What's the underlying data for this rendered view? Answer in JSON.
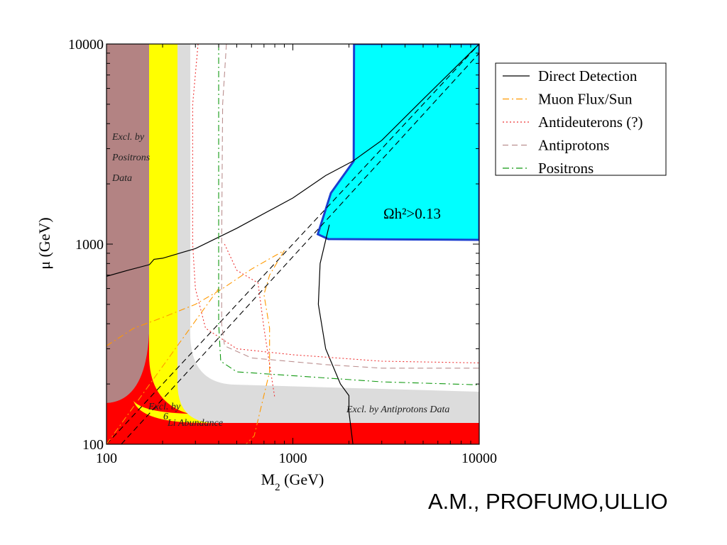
{
  "chart_data": {
    "type": "line",
    "xlabel": "M",
    "xlabel_sub": "2",
    "xlabel_unit": " (GeV)",
    "ylabel": "μ  (GeV)",
    "xscale": "log",
    "yscale": "log",
    "xlim": [
      100,
      10000
    ],
    "ylim": [
      100,
      10000
    ],
    "x_ticks": [
      {
        "value": 100,
        "label": "100"
      },
      {
        "value": 1000,
        "label": "1000"
      },
      {
        "value": 10000,
        "label": "10000"
      }
    ],
    "y_ticks": [
      {
        "value": 100,
        "label": "100"
      },
      {
        "value": 1000,
        "label": "1000"
      },
      {
        "value": 10000,
        "label": "10000"
      }
    ],
    "legend_position": "right",
    "series": [
      {
        "name": "Direct Detection",
        "color": "#000000",
        "dash": "solid",
        "segments": [
          [
            [
              100,
              690
            ],
            [
              130,
              740
            ],
            [
              170,
              790
            ],
            [
              180,
              840
            ],
            [
              200,
              850
            ],
            [
              300,
              950
            ],
            [
              500,
              1200
            ],
            [
              1000,
              1700
            ],
            [
              1500,
              2200
            ],
            [
              2100,
              2600
            ],
            [
              3000,
              3300
            ],
            [
              5000,
              5300
            ],
            [
              10000,
              10000
            ]
          ],
          [
            [
              1570,
              1250
            ],
            [
              1400,
              800
            ],
            [
              1370,
              500
            ],
            [
              1500,
              300
            ],
            [
              1800,
              200
            ],
            [
              2000,
              175
            ],
            [
              2000,
              145
            ],
            [
              2100,
              100
            ]
          ]
        ]
      },
      {
        "name": "Muon Flux/Sun",
        "color": "#ff9900",
        "dash": "dashdot",
        "segments": [
          [
            [
              100,
              310
            ],
            [
              140,
              380
            ],
            [
              200,
              430
            ],
            [
              300,
              500
            ],
            [
              420,
              600
            ],
            [
              600,
              750
            ],
            [
              900,
              930
            ]
          ],
          [
            [
              900,
              930
            ],
            [
              750,
              700
            ],
            [
              700,
              560
            ],
            [
              750,
              380
            ],
            [
              750,
              230
            ],
            [
              620,
              110
            ],
            [
              560,
              100
            ]
          ],
          [
            [
              100,
              100
            ],
            [
              400,
              600
            ]
          ]
        ]
      },
      {
        "name": "Antideuterons (?)",
        "color": "#ee3333",
        "dash": "dot",
        "segments": [
          [
            [
              310,
              10000
            ],
            [
              290,
              5000
            ],
            [
              290,
              1000
            ],
            [
              300,
              600
            ],
            [
              340,
              380
            ],
            [
              500,
              300
            ],
            [
              1000,
              280
            ],
            [
              3000,
              260
            ],
            [
              10000,
              255
            ]
          ],
          [
            [
              430,
              1000
            ],
            [
              500,
              740
            ],
            [
              650,
              640
            ],
            [
              700,
              380
            ],
            [
              800,
              170
            ]
          ]
        ]
      },
      {
        "name": "Antiprotons",
        "color": "#bb8f8f",
        "dash": "dash",
        "segments": [
          [
            [
              440,
              10000
            ],
            [
              420,
              5000
            ],
            [
              415,
              1000
            ],
            [
              415,
              400
            ],
            [
              430,
              310
            ],
            [
              600,
              270
            ],
            [
              1500,
              250
            ],
            [
              3000,
              240
            ],
            [
              10000,
              240
            ]
          ]
        ]
      },
      {
        "name": "Positrons",
        "color": "#119911",
        "dash": "dashdot",
        "segments": [
          [
            [
              400,
              10000
            ],
            [
              400,
              5000
            ],
            [
              400,
              1000
            ],
            [
              400,
              400
            ],
            [
              410,
              260
            ],
            [
              500,
              230
            ],
            [
              1000,
              220
            ],
            [
              3000,
              205
            ],
            [
              10000,
              198
            ]
          ]
        ]
      }
    ],
    "diagonals": [
      {
        "color": "#000000",
        "dash": "dash",
        "points": [
          [
            100,
            100
          ],
          [
            10000,
            10000
          ]
        ]
      },
      {
        "color": "#000000",
        "dash": "dash",
        "points": [
          [
            120,
            100
          ],
          [
            10000,
            9000
          ]
        ]
      }
    ],
    "regions": [
      {
        "label": "Ωh²>0.13",
        "color": "#00ffff",
        "border": "#1a3ed0",
        "boundary": [
          [
            2130,
            10000
          ],
          [
            2120,
            2600
          ],
          [
            1600,
            1800
          ],
          [
            1360,
            1120
          ],
          [
            1550,
            1060
          ],
          [
            10000,
            1050
          ],
          [
            10000,
            10000
          ]
        ]
      },
      {
        "label": "Excl. by Positrons Data",
        "color": "#b38383"
      },
      {
        "label": "Excl. by 6Li Abundance",
        "color": "#ffff00"
      },
      {
        "label": "Excl. by Antiprotons Data",
        "color": "#dcdcdc"
      }
    ],
    "annotations": {
      "positrons": [
        "Excl. by",
        "Positrons",
        "Data"
      ],
      "lithium_line1": "Excl. by",
      "lithium_sup": "6",
      "lithium_line2": "Li Abundance",
      "antiprotons": "Excl. by Antiprotons Data",
      "omega": "Ωh²>0.13"
    }
  },
  "credit": "A.M., PROFUMO,ULLIO"
}
